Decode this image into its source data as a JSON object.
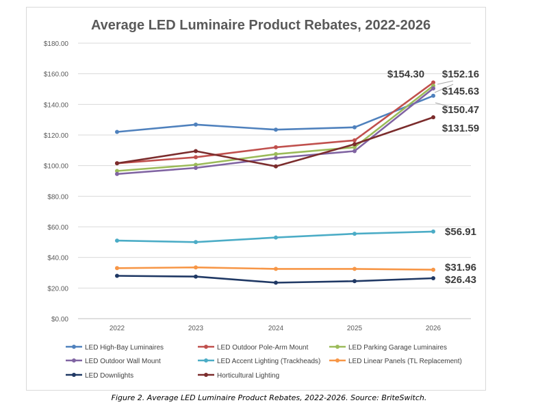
{
  "chart_data": {
    "type": "line",
    "title": "Average LED Luminaire Product Rebates, 2022-2026",
    "xlabel": "",
    "ylabel": "",
    "x": [
      "2022",
      "2023",
      "2024",
      "2025",
      "2026"
    ],
    "ylim": [
      0,
      180
    ],
    "yticks": [
      "$0.00",
      "$20.00",
      "$40.00",
      "$60.00",
      "$80.00",
      "$100.00",
      "$120.00",
      "$140.00",
      "$160.00",
      "$180.00"
    ],
    "grid": true,
    "legend_position": "bottom",
    "series": [
      {
        "name": "LED High-Bay Luminaires",
        "color": "#4f81bd",
        "values": [
          122.0,
          126.8,
          123.5,
          125.0,
          145.63
        ]
      },
      {
        "name": "LED Outdoor Pole-Arm Mount",
        "color": "#c0504d",
        "values": [
          101.5,
          105.5,
          112.0,
          116.5,
          154.3
        ]
      },
      {
        "name": "LED Parking Garage Luminaires",
        "color": "#9bbb59",
        "values": [
          96.5,
          100.5,
          107.5,
          112.0,
          152.16
        ]
      },
      {
        "name": "LED Outdoor Wall Mount",
        "color": "#8064a2",
        "values": [
          94.5,
          98.5,
          105.0,
          109.5,
          150.47
        ]
      },
      {
        "name": "LED Accent Lighting (Trackheads)",
        "color": "#4bacc6",
        "values": [
          51.0,
          50.0,
          53.0,
          55.5,
          56.91
        ]
      },
      {
        "name": "LED Linear Panels (TL Replacement)",
        "color": "#f79646",
        "values": [
          33.0,
          33.5,
          32.5,
          32.5,
          31.96
        ]
      },
      {
        "name": "LED Downlights",
        "color": "#1f3864",
        "values": [
          28.0,
          27.5,
          23.5,
          24.5,
          26.43
        ]
      },
      {
        "name": "Horticultural Lighting",
        "color": "#7b2c2c",
        "values": [
          101.5,
          109.5,
          99.5,
          114.0,
          131.59
        ]
      }
    ],
    "annotations": [
      "$154.30",
      "$152.16",
      "$145.63",
      "$150.47",
      "$131.59",
      "$56.91",
      "$31.96",
      "$26.43"
    ]
  },
  "caption": "Figure 2. Average LED Luminaire Product Rebates, 2022-2026. Source: BriteSwitch."
}
